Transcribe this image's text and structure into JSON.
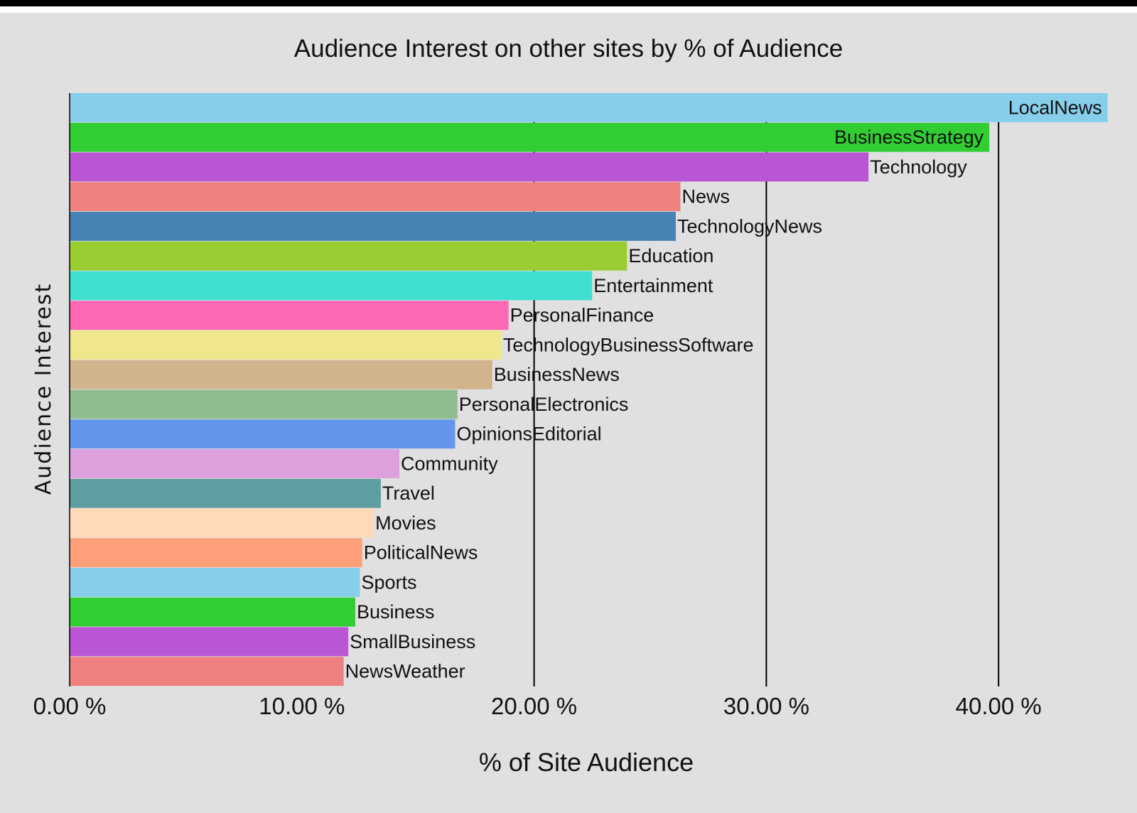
{
  "chart_data": {
    "type": "bar",
    "orientation": "horizontal",
    "title": "Audience Interest on other sites by % of Audience",
    "xlabel": "% of Site Audience",
    "ylabel": "Audience Interest",
    "xlim": [
      0,
      45
    ],
    "xticks": [
      0,
      10,
      20,
      30,
      40
    ],
    "xtick_labels": [
      "0.00 %",
      "10.00 %",
      "20.00 %",
      "30.00 %",
      "40.00 %"
    ],
    "grid": "vertical lines at 20, 30, 40",
    "categories": [
      "LocalNews",
      "BusinessStrategy",
      "Technology",
      "News",
      "TechnologyNews",
      "Education",
      "Entertainment",
      "PersonalFinance",
      "TechnologyBusinessSoftware",
      "BusinessNews",
      "PersonalElectronics",
      "OpinionsEditorial",
      "Community",
      "Travel",
      "Movies",
      "PoliticalNews",
      "Sports",
      "Business",
      "SmallBusiness",
      "NewsWeather"
    ],
    "values": [
      44.7,
      39.6,
      34.4,
      26.3,
      26.1,
      24.0,
      22.5,
      18.9,
      18.6,
      18.2,
      16.7,
      16.6,
      14.2,
      13.4,
      13.1,
      12.6,
      12.5,
      12.3,
      12.0,
      11.8
    ],
    "colors": [
      "#87ceeb",
      "#32cd32",
      "#ba55d3",
      "#f08080",
      "#4682b4",
      "#9acd32",
      "#40e0d0",
      "#ff69b4",
      "#f0e68c",
      "#d2b48c",
      "#8fbc8f",
      "#6495ed",
      "#dda0dd",
      "#5f9ea0",
      "#ffdab9",
      "#ffa07a",
      "#87ceeb",
      "#32cd32",
      "#ba55d3",
      "#f08080"
    ]
  }
}
